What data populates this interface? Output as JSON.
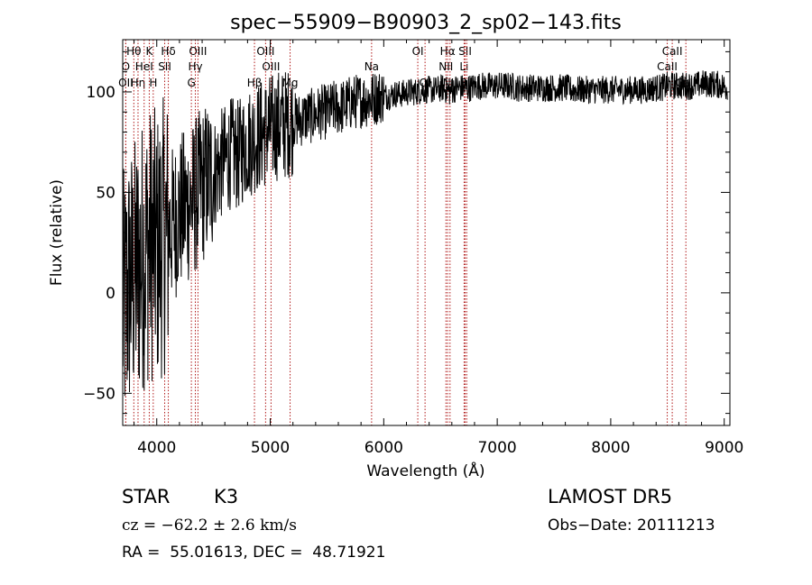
{
  "chart_data": {
    "type": "line",
    "title": "spec−55909−B90903_2_sp02−143.fits",
    "xlabel": "Wavelength (Å)",
    "ylabel": "Flux (relative)",
    "xlim": [
      3700,
      9050
    ],
    "ylim": [
      -66,
      126
    ],
    "xticks": [
      4000,
      5000,
      6000,
      7000,
      8000,
      9000
    ],
    "yticks": [
      -50,
      0,
      50,
      100
    ],
    "ytick_labels": [
      "−50",
      "0",
      "50",
      "100"
    ],
    "grid": false,
    "series": [
      {
        "x": [
          3700,
          3760,
          3820,
          3880,
          3940,
          4000,
          4060,
          4120,
          4180,
          4240,
          4300,
          4360,
          4420,
          4480,
          4540,
          4600,
          4660,
          4720,
          4780,
          4840,
          4900,
          4960,
          5020,
          5080,
          5140,
          5200,
          5260,
          5320,
          5380,
          5440,
          5500,
          5560,
          5620,
          5680,
          5740,
          5800,
          5860,
          5920,
          5980,
          6040,
          6100,
          6160,
          6220,
          6280,
          6340,
          6400,
          6460,
          6520,
          6580,
          6640,
          6700,
          6760,
          6820,
          6880,
          6940,
          7000,
          7060,
          7120,
          7180,
          7240,
          7300,
          7360,
          7420,
          7480,
          7540,
          7600,
          7660,
          7720,
          7780,
          7840,
          7900,
          7960,
          8020,
          8080,
          8140,
          8200,
          8260,
          8320,
          8380,
          8440,
          8500,
          8560,
          8620,
          8680,
          8740,
          8800,
          8860,
          8920,
          8980,
          9030
        ],
        "y": [
          -10,
          5,
          10,
          20,
          25,
          22,
          28,
          32,
          38,
          42,
          45,
          50,
          55,
          58,
          62,
          66,
          70,
          68,
          74,
          76,
          78,
          80,
          82,
          84,
          84,
          86,
          86,
          88,
          88,
          90,
          90,
          92,
          92,
          94,
          95,
          96,
          96,
          97,
          98,
          98,
          99,
          99,
          100,
          100,
          101,
          101,
          101,
          102,
          100,
          102,
          102,
          102,
          103,
          103,
          103,
          103,
          103,
          103,
          102,
          102,
          102,
          102,
          102,
          102,
          102,
          102,
          101,
          101,
          101,
          101,
          101,
          101,
          101,
          101,
          101,
          101,
          101,
          101,
          102,
          102,
          103,
          103,
          103,
          103,
          103,
          104,
          104,
          104,
          103,
          102
        ]
      }
    ],
    "lines": [
      {
        "name": "Hθ",
        "x": 3798,
        "row": 0
      },
      {
        "name": "O",
        "x": 3727,
        "row": 1
      },
      {
        "name": "OII",
        "x": 3727,
        "row": 2
      },
      {
        "name": "Hη",
        "x": 3835,
        "row": 2
      },
      {
        "name": "K",
        "x": 3934,
        "row": 0
      },
      {
        "name": "HeI",
        "x": 3889,
        "row": 1
      },
      {
        "name": "H",
        "x": 3969,
        "row": 2
      },
      {
        "name": "Hδ",
        "x": 4102,
        "row": 0
      },
      {
        "name": "SII",
        "x": 4070,
        "row": 1
      },
      {
        "name": "OIII",
        "x": 4363,
        "row": 0
      },
      {
        "name": "Hγ",
        "x": 4340,
        "row": 1
      },
      {
        "name": "G",
        "x": 4305,
        "row": 2
      },
      {
        "name": "Hβ",
        "x": 4861,
        "row": 2
      },
      {
        "name": "OIII",
        "x": 4959,
        "row": 0
      },
      {
        "name": "OIII",
        "x": 5007,
        "row": 1
      },
      {
        "name": "Mg",
        "x": 5175,
        "row": 2
      },
      {
        "name": "Na",
        "x": 5893,
        "row": 1
      },
      {
        "name": "OI",
        "x": 6300,
        "row": 0
      },
      {
        "name": "OI",
        "x": 6364,
        "row": 2
      },
      {
        "name": "Hα",
        "x": 6563,
        "row": 0
      },
      {
        "name": "NII",
        "x": 6548,
        "row": 1
      },
      {
        "name": "NII",
        "x": 6584,
        "row": 2
      },
      {
        "name": "SII",
        "x": 6717,
        "row": 0
      },
      {
        "name": "Li",
        "x": 6708,
        "row": 1
      },
      {
        "name": "SII",
        "x": 6731,
        "row": 2
      },
      {
        "name": "CaII",
        "x": 8542,
        "row": 0
      },
      {
        "name": "CaII",
        "x": 8498,
        "row": 1
      },
      {
        "name": "CaII",
        "x": 8662,
        "row": 2
      }
    ]
  },
  "info": {
    "class": "STAR",
    "subclass": "K3",
    "survey": "LAMOST DR5",
    "cz": "cz = −62.2 ± 2.6 km/s",
    "obs_date": "Obs−Date: 20111213",
    "coords": "RA =  55.01613, DEC =  48.71921"
  },
  "colors": {
    "spectrum": "#000000",
    "line_markers": "#b01818",
    "axes": "#000000"
  }
}
